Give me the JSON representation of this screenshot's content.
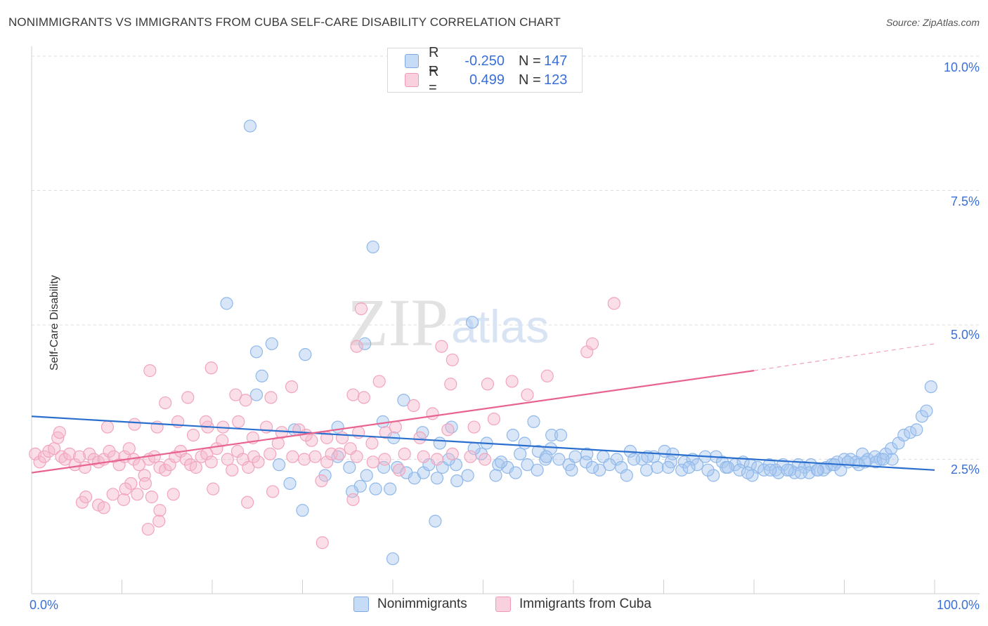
{
  "title": "NONIMMIGRANTS VS IMMIGRANTS FROM CUBA SELF-CARE DISABILITY CORRELATION CHART",
  "source": "Source: ZipAtlas.com",
  "watermark": {
    "zip": "ZIP",
    "atlas": "atlas"
  },
  "legend_top": {
    "rows": [
      {
        "r_label": "R =",
        "r_value": "-0.250",
        "n_label": "N =",
        "n_value": "147",
        "color": "#a8c8f0"
      },
      {
        "r_label": "R =",
        "r_value": "0.499",
        "n_label": "N =",
        "n_value": "123",
        "color": "#f5b8cb"
      }
    ]
  },
  "legend_bottom": [
    {
      "label": "Nonimmigrants",
      "color": "#a8c8f0"
    },
    {
      "label": "Immigrants from Cuba",
      "color": "#f5b8cb"
    }
  ],
  "axes": {
    "ylabel": "Self-Care Disability",
    "x_min_label": "0.0%",
    "x_max_label": "100.0%",
    "y_ticks": [
      "2.5%",
      "5.0%",
      "7.5%",
      "10.0%"
    ]
  },
  "chart_data": {
    "type": "scatter",
    "xlim": [
      0,
      100
    ],
    "ylim": [
      0,
      10
    ],
    "grid": true,
    "series": [
      {
        "name": "Nonimmigrants",
        "color": "#8fb8ea",
        "trend": {
          "x0": 0,
          "y0": 3.3,
          "x1": 100,
          "y1": 2.3,
          "color": "#2b6fce"
        },
        "points": [
          [
            24.2,
            8.7
          ],
          [
            37.8,
            6.45
          ],
          [
            21.6,
            5.4
          ],
          [
            48.8,
            5.05
          ],
          [
            24.9,
            4.5
          ],
          [
            26.6,
            4.65
          ],
          [
            30.3,
            4.45
          ],
          [
            36.9,
            4.65
          ],
          [
            25.5,
            4.05
          ],
          [
            24.9,
            3.7
          ],
          [
            41.2,
            3.6
          ],
          [
            53.3,
            2.95
          ],
          [
            55.6,
            3.2
          ],
          [
            57.6,
            2.95
          ],
          [
            58.6,
            2.95
          ],
          [
            38.9,
            3.2
          ],
          [
            40.1,
            2.9
          ],
          [
            33.9,
            3.1
          ],
          [
            29.1,
            3.05
          ],
          [
            43.3,
            3.0
          ],
          [
            46.5,
            3.1
          ],
          [
            45.2,
            2.8
          ],
          [
            50.4,
            2.8
          ],
          [
            54.6,
            2.8
          ],
          [
            56.1,
            2.65
          ],
          [
            57.5,
            2.7
          ],
          [
            61.5,
            2.6
          ],
          [
            63.3,
            2.55
          ],
          [
            64.8,
            2.5
          ],
          [
            66.3,
            2.65
          ],
          [
            67.6,
            2.5
          ],
          [
            68.9,
            2.55
          ],
          [
            70.1,
            2.65
          ],
          [
            71.0,
            2.6
          ],
          [
            72.3,
            2.45
          ],
          [
            73.2,
            2.5
          ],
          [
            74.6,
            2.55
          ],
          [
            75.8,
            2.55
          ],
          [
            76.5,
            2.45
          ],
          [
            77.9,
            2.4
          ],
          [
            78.8,
            2.45
          ],
          [
            79.6,
            2.4
          ],
          [
            80.4,
            2.35
          ],
          [
            81.7,
            2.4
          ],
          [
            82.4,
            2.3
          ],
          [
            83.2,
            2.4
          ],
          [
            84.0,
            2.3
          ],
          [
            84.9,
            2.4
          ],
          [
            85.6,
            2.35
          ],
          [
            86.3,
            2.4
          ],
          [
            87.1,
            2.3
          ],
          [
            88.0,
            2.35
          ],
          [
            88.6,
            2.4
          ],
          [
            89.2,
            2.45
          ],
          [
            90.0,
            2.5
          ],
          [
            90.7,
            2.5
          ],
          [
            91.3,
            2.45
          ],
          [
            92.0,
            2.6
          ],
          [
            92.6,
            2.5
          ],
          [
            93.4,
            2.55
          ],
          [
            94.0,
            2.5
          ],
          [
            94.6,
            2.6
          ],
          [
            95.2,
            2.7
          ],
          [
            96.0,
            2.8
          ],
          [
            96.6,
            2.95
          ],
          [
            97.3,
            3.0
          ],
          [
            98.0,
            3.05
          ],
          [
            98.6,
            3.3
          ],
          [
            99.1,
            3.4
          ],
          [
            99.6,
            3.85
          ],
          [
            27.4,
            2.4
          ],
          [
            28.6,
            2.05
          ],
          [
            30.0,
            1.55
          ],
          [
            32.5,
            2.2
          ],
          [
            33.9,
            2.55
          ],
          [
            35.2,
            2.35
          ],
          [
            36.4,
            2.0
          ],
          [
            37.1,
            2.2
          ],
          [
            38.1,
            1.95
          ],
          [
            39.0,
            2.35
          ],
          [
            40.5,
            2.35
          ],
          [
            41.5,
            2.25
          ],
          [
            42.4,
            2.15
          ],
          [
            43.4,
            2.25
          ],
          [
            44.0,
            2.4
          ],
          [
            44.9,
            2.15
          ],
          [
            45.5,
            2.35
          ],
          [
            47.0,
            2.4
          ],
          [
            48.3,
            2.2
          ],
          [
            49.8,
            2.6
          ],
          [
            51.7,
            2.4
          ],
          [
            52.7,
            2.35
          ],
          [
            54.9,
            2.4
          ],
          [
            56.9,
            2.5
          ],
          [
            58.4,
            2.5
          ],
          [
            59.5,
            2.4
          ],
          [
            60.2,
            2.55
          ],
          [
            61.4,
            2.45
          ],
          [
            62.9,
            2.3
          ],
          [
            64.0,
            2.4
          ],
          [
            65.3,
            2.35
          ],
          [
            66.7,
            2.5
          ],
          [
            68.1,
            2.3
          ],
          [
            69.3,
            2.35
          ],
          [
            70.8,
            2.45
          ],
          [
            72.0,
            2.3
          ],
          [
            73.7,
            2.4
          ],
          [
            75.5,
            2.2
          ],
          [
            76.9,
            2.35
          ],
          [
            78.4,
            2.3
          ],
          [
            79.8,
            2.2
          ],
          [
            81.1,
            2.3
          ],
          [
            82.7,
            2.25
          ],
          [
            84.5,
            2.25
          ],
          [
            86.1,
            2.25
          ],
          [
            87.7,
            2.3
          ],
          [
            89.6,
            2.3
          ],
          [
            91.6,
            2.4
          ],
          [
            93.5,
            2.45
          ],
          [
            95.3,
            2.5
          ],
          [
            35.5,
            1.9
          ],
          [
            39.7,
            1.95
          ],
          [
            44.7,
            1.35
          ],
          [
            40.0,
            0.65
          ],
          [
            47.1,
            2.1
          ],
          [
            51.4,
            2.2
          ],
          [
            53.6,
            2.25
          ],
          [
            56.0,
            2.3
          ],
          [
            59.8,
            2.3
          ],
          [
            62.1,
            2.35
          ],
          [
            65.9,
            2.2
          ],
          [
            68.2,
            2.55
          ],
          [
            70.5,
            2.35
          ],
          [
            72.8,
            2.35
          ],
          [
            74.9,
            2.3
          ],
          [
            77.1,
            2.35
          ],
          [
            79.3,
            2.25
          ],
          [
            81.8,
            2.3
          ],
          [
            83.7,
            2.3
          ],
          [
            85.2,
            2.25
          ],
          [
            87.0,
            2.3
          ],
          [
            88.9,
            2.4
          ],
          [
            90.4,
            2.45
          ],
          [
            92.3,
            2.45
          ],
          [
            94.3,
            2.5
          ],
          [
            46.2,
            2.5
          ],
          [
            49.0,
            2.7
          ],
          [
            52.0,
            2.45
          ],
          [
            54.1,
            2.6
          ],
          [
            57.0,
            2.55
          ]
        ]
      },
      {
        "name": "Immigrants from Cuba",
        "color": "#f2a4bd",
        "trend": {
          "x0": 0,
          "y0": 2.25,
          "x1": 80,
          "y1": 4.15,
          "color": "#e8648f",
          "dash_x1": 100,
          "dash_y1": 4.65
        },
        "points": [
          [
            0.4,
            2.6
          ],
          [
            0.9,
            2.45
          ],
          [
            1.4,
            2.55
          ],
          [
            1.9,
            2.65
          ],
          [
            2.5,
            2.7
          ],
          [
            2.9,
            2.9
          ],
          [
            3.3,
            2.55
          ],
          [
            3.7,
            2.5
          ],
          [
            4.2,
            2.6
          ],
          [
            4.8,
            2.4
          ],
          [
            5.3,
            2.55
          ],
          [
            5.9,
            2.35
          ],
          [
            6.4,
            2.6
          ],
          [
            6.9,
            2.5
          ],
          [
            7.4,
            2.45
          ],
          [
            8.0,
            2.5
          ],
          [
            8.6,
            2.65
          ],
          [
            9.1,
            2.55
          ],
          [
            9.7,
            2.4
          ],
          [
            10.3,
            2.55
          ],
          [
            10.8,
            2.7
          ],
          [
            11.3,
            2.5
          ],
          [
            11.9,
            2.4
          ],
          [
            12.5,
            2.2
          ],
          [
            13.0,
            2.5
          ],
          [
            13.6,
            2.55
          ],
          [
            14.2,
            2.35
          ],
          [
            14.8,
            2.3
          ],
          [
            15.3,
            2.4
          ],
          [
            15.9,
            2.55
          ],
          [
            16.5,
            2.65
          ],
          [
            17.1,
            2.5
          ],
          [
            17.6,
            2.4
          ],
          [
            18.2,
            2.35
          ],
          [
            18.8,
            2.55
          ],
          [
            19.4,
            2.6
          ],
          [
            19.9,
            2.45
          ],
          [
            20.5,
            2.7
          ],
          [
            21.1,
            2.85
          ],
          [
            21.7,
            2.5
          ],
          [
            22.2,
            2.3
          ],
          [
            22.8,
            2.65
          ],
          [
            23.4,
            2.5
          ],
          [
            24.0,
            2.35
          ],
          [
            24.6,
            2.55
          ],
          [
            25.1,
            2.45
          ],
          [
            26.4,
            2.6
          ],
          [
            27.3,
            2.8
          ],
          [
            28.9,
            2.55
          ],
          [
            30.2,
            2.5
          ],
          [
            31.4,
            2.55
          ],
          [
            32.7,
            2.45
          ],
          [
            33.2,
            2.6
          ],
          [
            34.1,
            2.6
          ],
          [
            35.3,
            2.7
          ],
          [
            36.0,
            2.55
          ],
          [
            37.8,
            2.45
          ],
          [
            39.1,
            2.5
          ],
          [
            41.3,
            2.6
          ],
          [
            43.4,
            2.55
          ],
          [
            44.9,
            2.5
          ],
          [
            46.6,
            2.6
          ],
          [
            48.6,
            2.55
          ],
          [
            50.2,
            2.5
          ],
          [
            3.1,
            3.0
          ],
          [
            8.4,
            3.1
          ],
          [
            11.4,
            3.15
          ],
          [
            13.9,
            3.1
          ],
          [
            16.2,
            3.2
          ],
          [
            17.9,
            2.95
          ],
          [
            19.5,
            3.1
          ],
          [
            21.2,
            3.1
          ],
          [
            22.9,
            3.2
          ],
          [
            24.5,
            2.9
          ],
          [
            26.0,
            3.1
          ],
          [
            27.7,
            3.0
          ],
          [
            29.6,
            3.05
          ],
          [
            31.0,
            2.85
          ],
          [
            32.7,
            2.9
          ],
          [
            34.4,
            2.9
          ],
          [
            36.2,
            3.0
          ],
          [
            37.7,
            2.8
          ],
          [
            39.2,
            3.0
          ],
          [
            40.3,
            3.1
          ],
          [
            43.0,
            2.9
          ],
          [
            46.1,
            3.05
          ],
          [
            49.0,
            3.1
          ],
          [
            51.2,
            3.25
          ],
          [
            13.1,
            4.15
          ],
          [
            14.8,
            3.55
          ],
          [
            17.3,
            3.65
          ],
          [
            19.3,
            3.2
          ],
          [
            19.9,
            4.2
          ],
          [
            22.6,
            3.7
          ],
          [
            23.7,
            3.6
          ],
          [
            26.5,
            3.65
          ],
          [
            28.8,
            3.85
          ],
          [
            30.4,
            2.95
          ],
          [
            35.6,
            3.7
          ],
          [
            36.8,
            3.65
          ],
          [
            38.5,
            3.95
          ],
          [
            42.3,
            3.5
          ],
          [
            44.4,
            3.35
          ],
          [
            46.4,
            3.9
          ],
          [
            50.5,
            3.9
          ],
          [
            53.2,
            3.95
          ],
          [
            57.1,
            4.05
          ],
          [
            61.5,
            4.5
          ],
          [
            54.9,
            3.7
          ],
          [
            36.5,
            5.3
          ],
          [
            36.0,
            4.6
          ],
          [
            45.4,
            4.6
          ],
          [
            46.6,
            4.35
          ],
          [
            62.1,
            4.65
          ],
          [
            64.5,
            5.4
          ],
          [
            5.6,
            1.7
          ],
          [
            7.4,
            1.65
          ],
          [
            9.0,
            1.85
          ],
          [
            10.2,
            1.75
          ],
          [
            11.7,
            1.85
          ],
          [
            13.3,
            1.8
          ],
          [
            14.2,
            1.55
          ],
          [
            15.7,
            1.85
          ],
          [
            6.0,
            1.8
          ],
          [
            11.0,
            2.05
          ],
          [
            12.6,
            2.05
          ],
          [
            10.4,
            1.95
          ],
          [
            20.1,
            1.95
          ],
          [
            23.9,
            1.7
          ],
          [
            26.7,
            1.9
          ],
          [
            32.1,
            2.1
          ],
          [
            35.6,
            1.75
          ],
          [
            40.7,
            2.3
          ],
          [
            12.9,
            1.2
          ],
          [
            14.1,
            1.35
          ],
          [
            32.2,
            0.95
          ],
          [
            8.0,
            1.6
          ]
        ]
      }
    ]
  }
}
